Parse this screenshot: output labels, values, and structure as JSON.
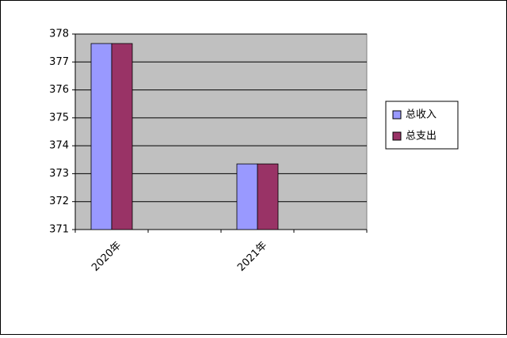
{
  "chart_data": {
    "type": "bar",
    "categories": [
      "2020年",
      null,
      "2021年",
      null
    ],
    "series": [
      {
        "name": "总收入",
        "color": "#9999ff",
        "values": [
          377.66,
          null,
          373.35,
          null
        ]
      },
      {
        "name": "总支出",
        "color": "#993366",
        "values": [
          377.66,
          null,
          373.35,
          null
        ]
      }
    ],
    "ylim": [
      371,
      378
    ],
    "yticks": [
      371,
      372,
      373,
      374,
      375,
      376,
      377,
      378
    ],
    "grid": true,
    "legend": "right"
  }
}
